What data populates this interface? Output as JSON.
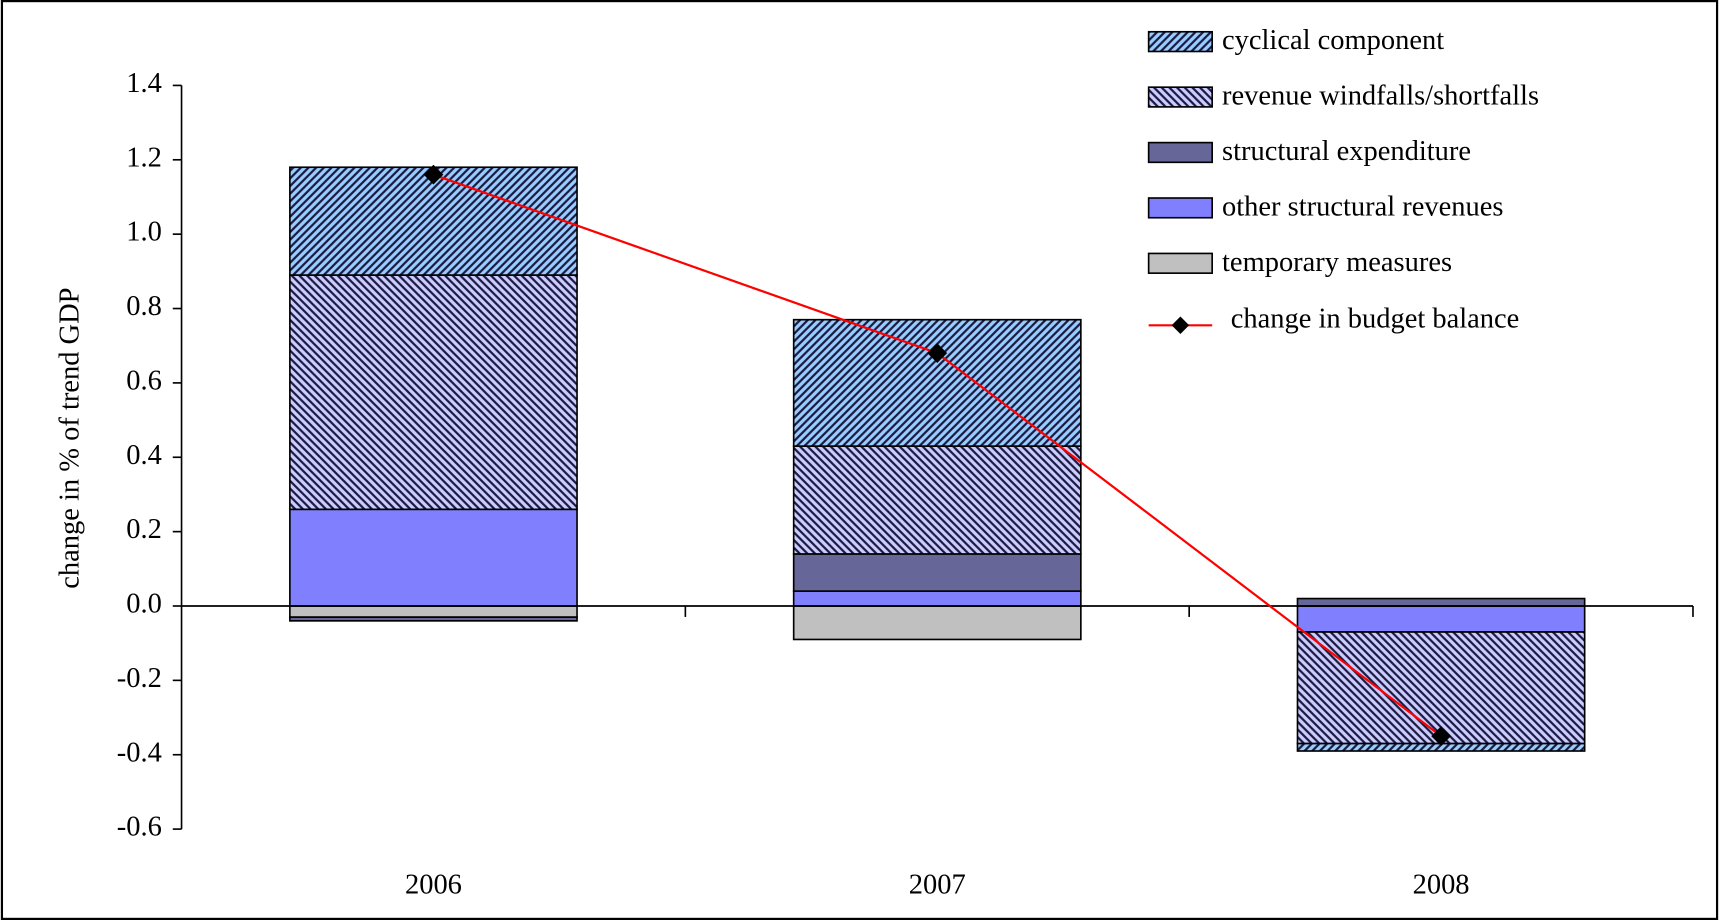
{
  "chart_data": {
    "type": "bar",
    "stacked": true,
    "y_label": "change in % of trend GDP",
    "categories": [
      "2006",
      "2007",
      "2008"
    ],
    "ylim": [
      -0.6,
      1.4
    ],
    "yticks": [
      1.4,
      1.2,
      {
        "value": 1.0,
        "label": "1.0"
      },
      0.8,
      0.6,
      0.4,
      0.2,
      {
        "value": 0,
        "label": "0.0"
      },
      -0.2,
      -0.4,
      -0.6
    ],
    "legend": "top-right",
    "series": [
      {
        "name": "cyclical component",
        "type": "bar",
        "color": "#99ccff",
        "pattern": "up",
        "values": [
          0.29,
          0.34,
          -0.02
        ]
      },
      {
        "name": "revenue windfalls/shortfalls",
        "type": "bar",
        "color": "#ccccff",
        "pattern": "down",
        "values": [
          0.63,
          0.29,
          -0.3
        ]
      },
      {
        "name": "structural expenditure",
        "type": "bar",
        "color": "#666699",
        "values": [
          -0.01,
          0.1,
          0.02
        ]
      },
      {
        "name": "other structural revenues",
        "type": "bar",
        "color": "#8080ff",
        "values": [
          0.26,
          0.04,
          -0.07
        ]
      },
      {
        "name": "temporary measures",
        "type": "bar",
        "color": "#c0c0c0",
        "values": [
          -0.03,
          -0.09,
          0
        ]
      },
      {
        "name": "change in budget balance",
        "type": "line",
        "color": "#ff0000",
        "marker_color": "#000000",
        "values": [
          1.16,
          0.68,
          -0.35
        ]
      }
    ]
  }
}
